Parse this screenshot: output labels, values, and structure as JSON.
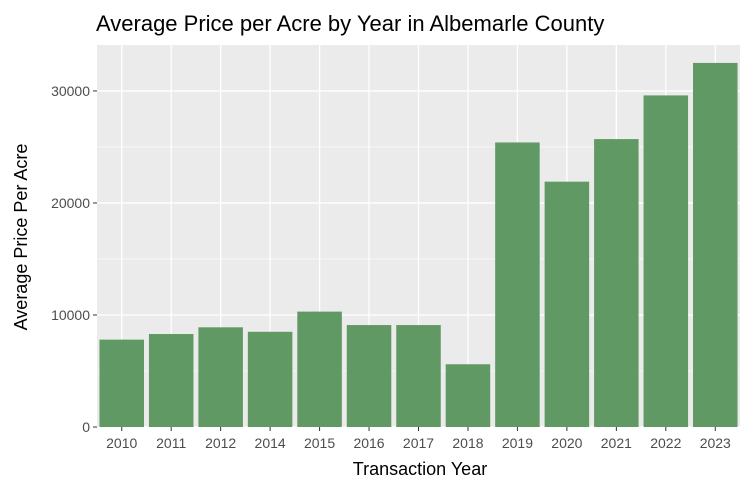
{
  "chart_data": {
    "type": "bar",
    "title": "Average Price per Acre by Year in Albemarle County",
    "xlabel": "Transaction Year",
    "ylabel": "Average Price Per Acre",
    "categories": [
      "2010",
      "2011",
      "2012",
      "2014",
      "2015",
      "2016",
      "2017",
      "2018",
      "2019",
      "2020",
      "2021",
      "2022",
      "2023"
    ],
    "values": [
      7800,
      8300,
      8900,
      8500,
      10300,
      9100,
      9100,
      5600,
      25400,
      21900,
      25700,
      29600,
      32500
    ],
    "ylim": [
      0,
      34100
    ],
    "yticks": [
      0,
      10000,
      20000,
      30000
    ],
    "ytick_labels": [
      "0",
      "10000",
      "20000",
      "30000"
    ],
    "grid": true,
    "legend": "none",
    "colors": {
      "bar": "#609963",
      "panel_background": "#ebebeb",
      "grid": "#ffffff",
      "tick_text": "#4d4d4d"
    }
  }
}
